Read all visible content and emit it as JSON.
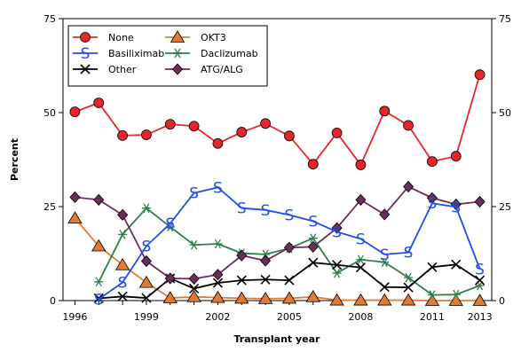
{
  "chart_data": {
    "type": "line",
    "xlabel": "Transplant year",
    "ylabel": "Percent",
    "xlim": [
      1995.5,
      2013.5
    ],
    "ylim": [
      0,
      75
    ],
    "x_ticks": [
      "1996",
      "1999",
      "2002",
      "2005",
      "2008",
      "2011",
      "2013"
    ],
    "y_ticks": [
      "0",
      "25",
      "50",
      "75"
    ],
    "legend_position": "top-left",
    "grid": false,
    "series": [
      {
        "name": "None",
        "color": "#e8252a",
        "marker": "circle",
        "x": [
          1996,
          1997,
          1998,
          1999,
          2000,
          2001,
          2002,
          2003,
          2004,
          2005,
          2006,
          2007,
          2008,
          2009,
          2010,
          2011,
          2012,
          2013
        ],
        "values": [
          50.2,
          52.6,
          43.9,
          44.1,
          46.9,
          46.4,
          41.8,
          44.8,
          47.1,
          43.8,
          36.3,
          44.6,
          36.1,
          50.4,
          46.6,
          37.0,
          38.4,
          60.1
        ]
      },
      {
        "name": "OKT3",
        "color": "#e07a35",
        "marker": "triangle",
        "x": [
          1996,
          1997,
          1998,
          1999,
          2000,
          2001,
          2002,
          2003,
          2004,
          2005,
          2006,
          2007,
          2008,
          2009,
          2010,
          2011,
          2012,
          2013
        ],
        "values": [
          21.9,
          14.5,
          9.5,
          4.8,
          0.7,
          1.0,
          0.8,
          0.6,
          0.5,
          0.6,
          1.0,
          0.1,
          0.1,
          0.1,
          0.1,
          0.0,
          0.0,
          0.0
        ]
      },
      {
        "name": "Basiliximab",
        "color": "#1f4ee8",
        "marker": "S",
        "x": [
          1997,
          1998,
          1999,
          2000,
          2001,
          2002,
          2003,
          2004,
          2005,
          2006,
          2007,
          2008,
          2009,
          2010,
          2011,
          2012,
          2013
        ],
        "values": [
          0.4,
          4.8,
          14.5,
          20.5,
          28.6,
          30.1,
          24.6,
          24.1,
          22.8,
          21.1,
          18.3,
          16.4,
          12.3,
          12.8,
          25.9,
          24.9,
          8.4
        ]
      },
      {
        "name": "Daclizumab",
        "color": "#2e7d4a",
        "marker": "asterisk",
        "x": [
          1997,
          1998,
          1999,
          2000,
          2001,
          2002,
          2003,
          2004,
          2005,
          2006,
          2007,
          2008,
          2009,
          2010,
          2011,
          2012,
          2013
        ],
        "values": [
          5.0,
          17.6,
          24.6,
          19.6,
          14.8,
          15.1,
          12.6,
          12.3,
          13.9,
          16.6,
          7.3,
          10.9,
          10.2,
          6.1,
          1.5,
          1.6,
          4.0
        ]
      },
      {
        "name": "Other",
        "color": "#000000",
        "marker": "x",
        "x": [
          1997,
          1998,
          1999,
          2000,
          2001,
          2002,
          2003,
          2004,
          2005,
          2006,
          2007,
          2008,
          2009,
          2010,
          2011,
          2012,
          2013
        ],
        "values": [
          0.6,
          1.1,
          0.7,
          5.9,
          3.2,
          4.7,
          5.4,
          5.6,
          5.4,
          10.1,
          9.5,
          8.8,
          3.6,
          3.5,
          8.9,
          9.6,
          5.4
        ]
      },
      {
        "name": "ATG/ALG",
        "color": "#6a2e5c",
        "marker": "diamond",
        "x": [
          1996,
          1997,
          1998,
          1999,
          2000,
          2001,
          2002,
          2003,
          2004,
          2005,
          2006,
          2007,
          2008,
          2009,
          2010,
          2011,
          2012,
          2013
        ],
        "values": [
          27.5,
          26.8,
          22.8,
          10.5,
          5.9,
          5.8,
          6.9,
          12.0,
          10.6,
          14.1,
          14.3,
          19.3,
          26.8,
          22.9,
          30.3,
          27.3,
          25.6,
          26.3
        ]
      }
    ],
    "legend": [
      {
        "series": "None"
      },
      {
        "series": "OKT3"
      },
      {
        "series": "Basiliximab"
      },
      {
        "series": "Daclizumab"
      },
      {
        "series": "Other"
      },
      {
        "series": "ATG/ALG"
      }
    ]
  }
}
